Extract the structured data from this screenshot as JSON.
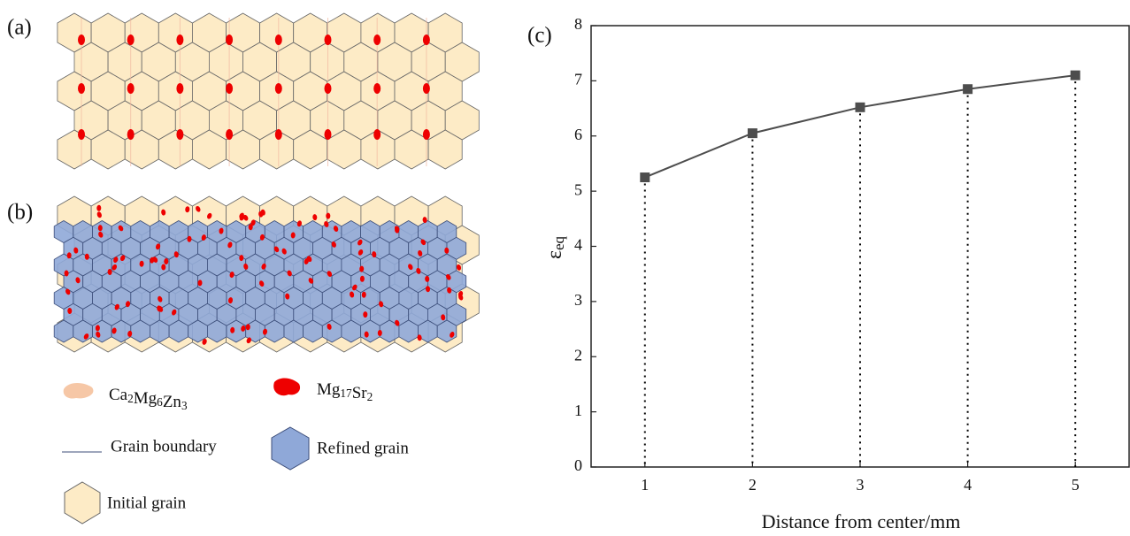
{
  "panel_labels": [
    "(a)",
    "(b)"
  ],
  "legend": [
    "Ca2Mg6Zn3",
    "Mg17Sr2",
    "Grain boundary",
    "Refined grain",
    "Initial grain"
  ],
  "chart_data": {
    "type": "line",
    "panel_label": "(c)",
    "x_label": "Distance from center/mm",
    "y_label": "εeq",
    "x": [
      1,
      2,
      3,
      4,
      5
    ],
    "series": [
      {
        "color": "#4d4d4d",
        "values": [
          5.25,
          6.05,
          6.52,
          6.85,
          7.1
        ]
      }
    ],
    "xlim": [
      0.5,
      5.5
    ],
    "xticks": [
      1,
      2,
      3,
      4,
      5
    ],
    "ylim": [
      0,
      8
    ],
    "yticks": [
      0,
      1,
      2,
      3,
      4,
      5,
      6,
      7,
      8
    ],
    "drop_lines": true
  }
}
